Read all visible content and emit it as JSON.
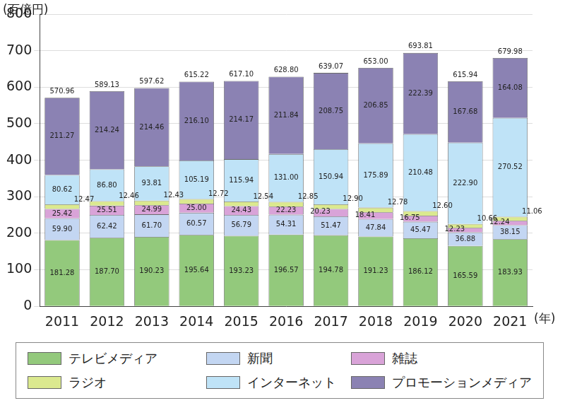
{
  "chart_data": {
    "type": "bar",
    "y_label": "(百億円)",
    "x_label": "(年)",
    "categories": [
      "2011",
      "2012",
      "2013",
      "2014",
      "2015",
      "2016",
      "2017",
      "2018",
      "2019",
      "2020",
      "2021"
    ],
    "stacked": true,
    "data_labels": true,
    "grid": true,
    "legend": "bottom",
    "ylim": [
      0,
      800
    ],
    "yticks": [
      0,
      100,
      200,
      300,
      400,
      500,
      600,
      700,
      800
    ],
    "totals": [
      570.96,
      589.13,
      597.62,
      615.22,
      617.1,
      628.8,
      639.07,
      653.0,
      693.81,
      615.94,
      679.98
    ],
    "total_labels": [
      "570.96",
      "589.13",
      "597.62",
      "615.22",
      "617.10",
      "628.80",
      "639.07",
      "653.00",
      "693.81",
      "615.94",
      "679.98"
    ],
    "series": [
      {
        "name": "テレビメディア",
        "color": "#93c97c",
        "values": [
          181.28,
          187.7,
          190.23,
          195.64,
          193.23,
          196.57,
          194.78,
          191.23,
          186.12,
          165.59,
          183.93
        ],
        "value_labels": [
          "181.28",
          "187.70",
          "190.23",
          "195.64",
          "193.23",
          "196.57",
          "194.78",
          "191.23",
          "186.12",
          "165.59",
          "183.93"
        ]
      },
      {
        "name": "新聞",
        "color": "#c3d6f2",
        "values": [
          59.9,
          62.42,
          61.7,
          60.57,
          56.79,
          54.31,
          51.47,
          47.84,
          45.47,
          36.88,
          38.15
        ],
        "value_labels": [
          "59.90",
          "62.42",
          "61.70",
          "60.57",
          "56.79",
          "54.31",
          "51.47",
          "47.84",
          "45.47",
          "36.88",
          "38.15"
        ]
      },
      {
        "name": "雑誌",
        "color": "#d9a3d8",
        "values": [
          25.42,
          25.51,
          24.99,
          25.0,
          24.43,
          22.23,
          20.23,
          18.41,
          16.75,
          12.23,
          12.24
        ],
        "value_labels": [
          "25.42",
          "25.51",
          "24.99",
          "25.00",
          "24.43",
          "22.23",
          "20.23",
          "18.41",
          "16.75",
          "12.23",
          "12.24"
        ]
      },
      {
        "name": "ラジオ",
        "color": "#dbe98f",
        "values": [
          12.47,
          12.46,
          12.43,
          12.72,
          12.54,
          12.85,
          12.9,
          12.78,
          12.6,
          10.66,
          11.06
        ],
        "value_labels": [
          "12.47",
          "12.46",
          "12.43",
          "12.72",
          "12.54",
          "12.85",
          "12.90",
          "12.78",
          "12.60",
          "10.66",
          "11.06"
        ]
      },
      {
        "name": "インターネット",
        "color": "#bfe3f7",
        "values": [
          80.62,
          86.8,
          93.81,
          105.19,
          115.94,
          131.0,
          150.94,
          175.89,
          210.48,
          222.9,
          270.52
        ],
        "value_labels": [
          "80.62",
          "86.80",
          "93.81",
          "105.19",
          "115.94",
          "131.00",
          "150.94",
          "175.89",
          "210.48",
          "222.90",
          "270.52"
        ]
      },
      {
        "name": "プロモーションメディア",
        "color": "#8b82b3",
        "values": [
          211.27,
          214.24,
          214.46,
          216.1,
          214.17,
          211.84,
          208.75,
          206.85,
          222.39,
          167.68,
          164.08
        ],
        "value_labels": [
          "211.27",
          "214.24",
          "214.46",
          "216.10",
          "214.17",
          "211.84",
          "208.75",
          "206.85",
          "222.39",
          "167.68",
          "164.08"
        ]
      }
    ]
  }
}
